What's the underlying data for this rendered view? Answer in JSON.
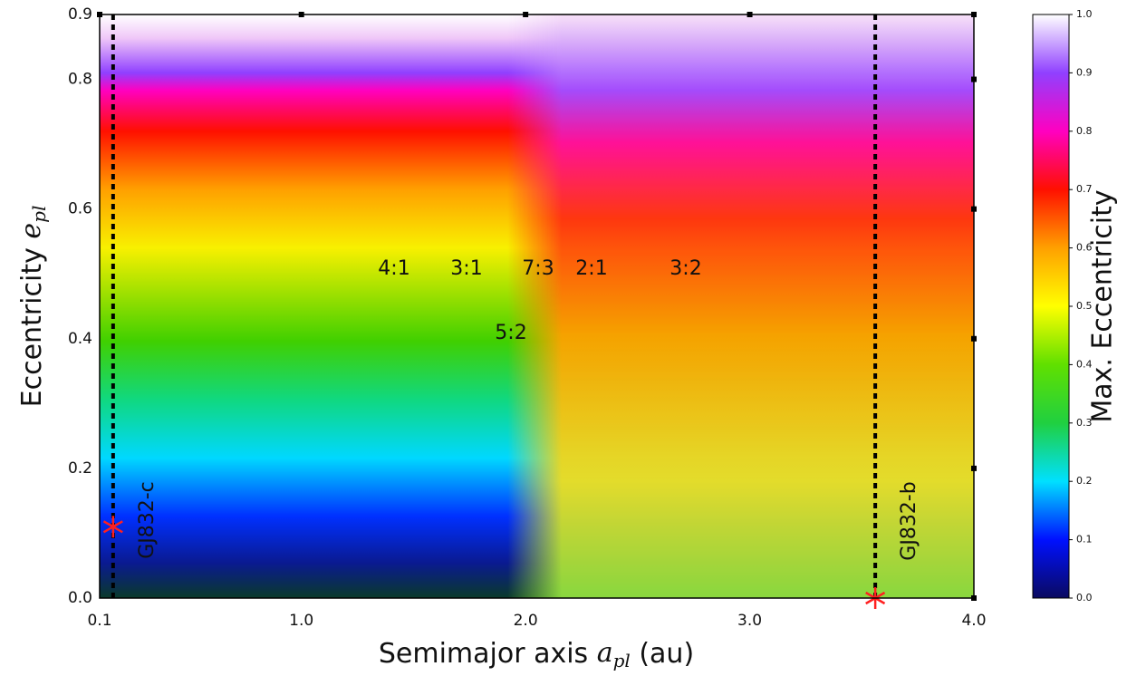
{
  "chart_data": {
    "type": "heatmap",
    "x_label": [
      "Semimajor axis ",
      "a",
      "pl",
      " (au)"
    ],
    "y_label": [
      "Eccentricity ",
      "e",
      "pl"
    ],
    "colorbar_label": "Max. Eccentricity",
    "xlim": [
      0.1,
      4.0
    ],
    "xticks": [
      0.1,
      {
        "value": 1,
        "label": "1.0"
      },
      {
        "value": 2,
        "label": "2.0"
      },
      {
        "value": 3,
        "label": "3.0"
      },
      {
        "value": 4,
        "label": "4.0"
      }
    ],
    "ylim": [
      0,
      0.9
    ],
    "yticks": [
      {
        "value": 0,
        "label": "0.0"
      },
      0.2,
      0.4,
      0.6,
      0.8,
      0.9
    ],
    "colorbar_lim": [
      0,
      1
    ],
    "colorbar_ticks": [
      {
        "value": 0,
        "label": "0.0"
      },
      0.1,
      0.2,
      0.3,
      0.4,
      0.5,
      0.6,
      0.7,
      0.8,
      0.9,
      {
        "value": 1,
        "label": "1.0"
      }
    ],
    "colormap": [
      "#0a0a60",
      "#0010ff",
      "#00e0ff",
      "#20d040",
      "#60e000",
      "#ffff00",
      "#ffa000",
      "#ff1000",
      "#ff00c0",
      "#9040ff",
      "#ffffff"
    ],
    "annotations": [
      "4:1",
      "3:1",
      "5:2",
      "7:3",
      "2:1",
      "3:2"
    ],
    "planets": [
      {
        "name": "GJ832-c",
        "x": 0.16,
        "y": 0.11,
        "color": "#ff2020"
      },
      {
        "name": "GJ832-b",
        "x": 3.56,
        "y": 0.0,
        "color": "#ff2020"
      }
    ]
  }
}
